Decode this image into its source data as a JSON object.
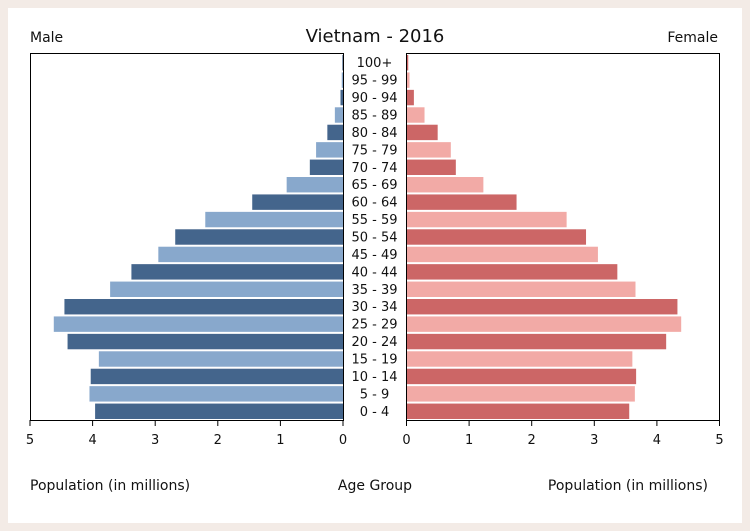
{
  "chart_data": {
    "type": "bar",
    "title": "Vietnam - 2016",
    "left_label": "Male",
    "right_label": "Female",
    "xlabel_left": "Population (in millions)",
    "xlabel_center": "Age Group",
    "xlabel_right": "Population (in millions)",
    "xlim": [
      0,
      5
    ],
    "x_ticks": [
      "0",
      "1",
      "2",
      "3",
      "4",
      "5"
    ],
    "categories": [
      "100+",
      "95 - 99",
      "90 - 94",
      "85 - 89",
      "80 - 84",
      "75 - 79",
      "70 - 74",
      "65 - 69",
      "60 - 64",
      "55 - 59",
      "50 - 54",
      "45 - 49",
      "40 - 44",
      "35 - 39",
      "30 - 34",
      "25 - 29",
      "20 - 24",
      "15 - 19",
      "10 - 14",
      "5 - 9",
      "0 - 4"
    ],
    "series": [
      {
        "name": "Male",
        "values": [
          0.01,
          0.02,
          0.04,
          0.13,
          0.25,
          0.43,
          0.53,
          0.9,
          1.45,
          2.2,
          2.68,
          2.95,
          3.38,
          3.72,
          4.45,
          4.62,
          4.4,
          3.9,
          4.03,
          4.05,
          3.96
        ],
        "colors": [
          "#44658c",
          "#88a8cc"
        ]
      },
      {
        "name": "Female",
        "values": [
          0.02,
          0.04,
          0.11,
          0.28,
          0.49,
          0.7,
          0.78,
          1.22,
          1.75,
          2.55,
          2.86,
          3.05,
          3.36,
          3.65,
          4.32,
          4.38,
          4.14,
          3.6,
          3.66,
          3.64,
          3.55
        ],
        "colors": [
          "#cc6666",
          "#f2aaa6"
        ]
      }
    ],
    "grid": false
  }
}
